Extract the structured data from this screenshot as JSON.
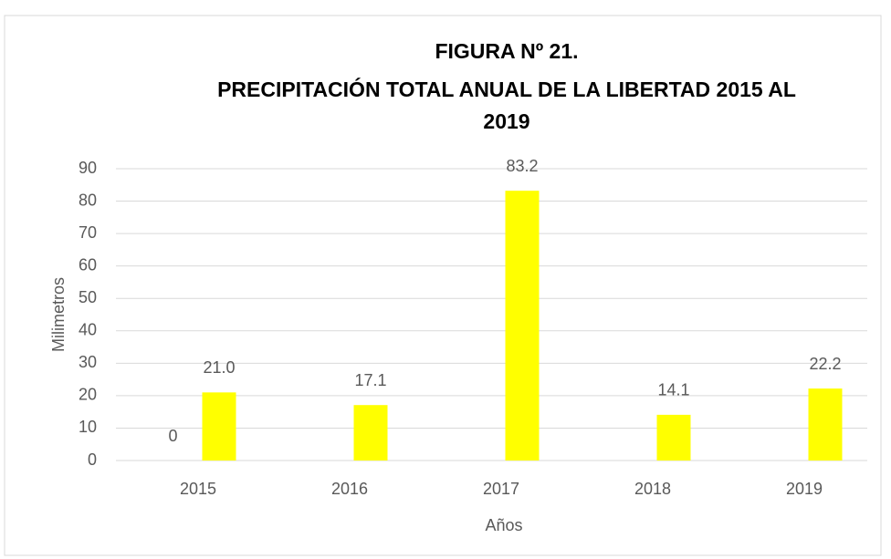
{
  "chart_data": {
    "type": "bar",
    "title": [
      "FIGURA Nº 21.",
      "PRECIPITACIÓN TOTAL ANUAL DE LA LIBERTAD 2015 AL",
      "2019"
    ],
    "x_label": "Años",
    "y_label": "Milimetros",
    "categories": [
      "2015",
      "2016",
      "2017",
      "2018",
      "2019"
    ],
    "series": [
      {
        "color": "#ffff00",
        "values": [
          0,
          null,
          null,
          null,
          null
        ]
      },
      {
        "color": "#ffff00",
        "values": [
          21.0,
          17.1,
          83.2,
          14.1,
          22.2
        ],
        "value_labels": [
          "21.0",
          "17.1",
          "83.2",
          "14.1",
          "22.2"
        ]
      }
    ],
    "ylim": [
      0,
      90
    ],
    "yticks": [
      0,
      10,
      20,
      30,
      40,
      50,
      60,
      70,
      80,
      90
    ],
    "grid": true
  }
}
